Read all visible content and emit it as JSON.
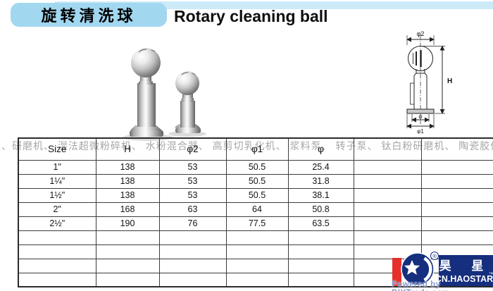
{
  "header": {
    "title_cn": "旋转清洗球",
    "title_en": "Rotary cleaning ball"
  },
  "watermark": {
    "text": "、研磨机、 湿法超微粉碎机、 水粉混合器、 高剪切乳化机、 浆料泵、 转子泵、 钛白粉研磨机、 陶瓷胶体磨、 釉料胶体磨、 立式胶体磨、"
  },
  "diagram": {
    "labels": {
      "phi2": "φ2",
      "h": "H",
      "phi": "φ",
      "phi1": "φ1"
    }
  },
  "table": {
    "headers": [
      "Size",
      "H",
      "φ2",
      "φ1",
      "φ",
      "",
      ""
    ],
    "rows": [
      [
        "1\"",
        "138",
        "53",
        "50.5",
        "25.4",
        "",
        ""
      ],
      [
        "1¼\"",
        "138",
        "53",
        "50.5",
        "31.8",
        "",
        ""
      ],
      [
        "1½\"",
        "138",
        "53",
        "50.5",
        "38.1",
        "",
        ""
      ],
      [
        "2\"",
        "168",
        "63",
        "64",
        "50.8",
        "",
        ""
      ],
      [
        "2½\"",
        "190",
        "76",
        "77.5",
        "63.5",
        "",
        ""
      ]
    ],
    "empty_rows": 4
  },
  "logo": {
    "cn": "昊 星",
    "en": "CN.HAOSTAR",
    "tm": "™",
    "reg": "®"
  },
  "footer": {
    "powered_by": "Powered by DIYTrade.com"
  },
  "colors": {
    "strip_blue": "#cdeaf8",
    "title_box_blue": "#a2d7f0",
    "logo_navy": "#152e7d",
    "logo_red": "#e5302b",
    "watermark_gray": "#989898"
  }
}
